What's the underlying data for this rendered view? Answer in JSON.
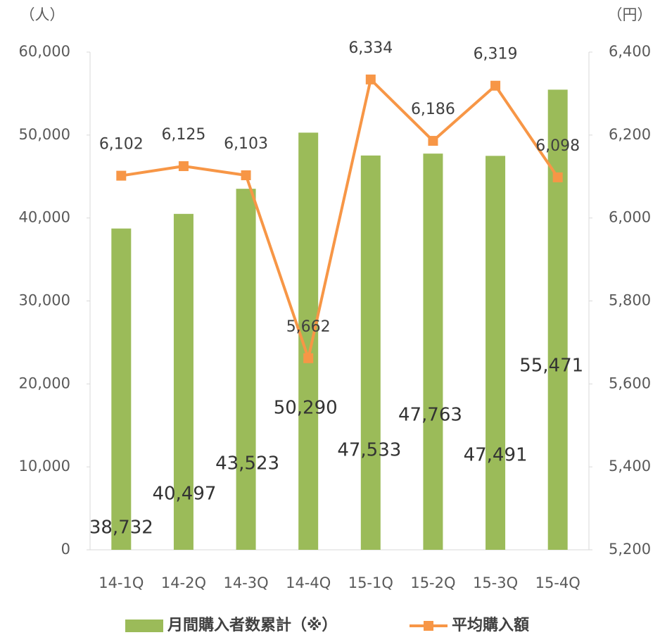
{
  "chart_data": {
    "type": "bar-line",
    "y_unit": "（人）",
    "y2_unit": "（円）",
    "categories": [
      "14-1Q",
      "14-2Q",
      "14-3Q",
      "14-4Q",
      "15-1Q",
      "15-2Q",
      "15-3Q",
      "15-4Q"
    ],
    "series": [
      {
        "name": "月間購入者数累計（※）",
        "type": "bar",
        "color": "#9bbb59",
        "values": [
          38732,
          40497,
          43523,
          50290,
          47533,
          47763,
          47491,
          55471
        ],
        "value_labels": [
          "38,732",
          "40,497",
          "43,523",
          "50,290",
          "47,533",
          "47,763",
          "47,491",
          "55,471"
        ]
      },
      {
        "name": "平均購入額",
        "type": "line",
        "axis": "y2",
        "color": "#f79646",
        "values": [
          6102,
          6125,
          6103,
          5662,
          6334,
          6186,
          6319,
          6098
        ],
        "value_labels": [
          "6,102",
          "6,125",
          "6,103",
          "5,662",
          "6,334",
          "6,186",
          "6,319",
          "6,098"
        ]
      }
    ],
    "ylim": [
      0,
      60000
    ],
    "yticks": [
      0,
      {
        "value": 10000,
        "label": "10,000"
      },
      {
        "value": 20000,
        "label": "20,000"
      },
      {
        "value": 30000,
        "label": "30,000"
      },
      {
        "value": 40000,
        "label": "40,000"
      },
      {
        "value": 50000,
        "label": "50,000"
      },
      {
        "value": 60000,
        "label": "60,000"
      }
    ],
    "y2lim": [
      5200,
      6400
    ],
    "y2ticks": [
      {
        "value": 5200,
        "label": "5,200"
      },
      {
        "value": 5400,
        "label": "5,400"
      },
      {
        "value": 5600,
        "label": "5,600"
      },
      {
        "value": 5800,
        "label": "5,800"
      },
      {
        "value": 6000,
        "label": "6,000"
      },
      {
        "value": 6200,
        "label": "6,200"
      },
      {
        "value": 6400,
        "label": "6,400"
      }
    ],
    "legend": "bottom"
  }
}
